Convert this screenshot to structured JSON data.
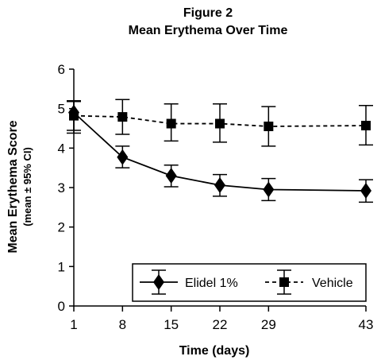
{
  "figure": {
    "title_line1": "Figure 2",
    "title_line2": "Mean Erythema Over Time"
  },
  "chart_data": {
    "type": "line",
    "xlabel": "Time (days)",
    "ylabel": "Mean Erythema Score",
    "ylabel_sub": "(mean ± 95% CI)",
    "x": [
      1,
      8,
      15,
      22,
      29,
      43
    ],
    "x_tick_labels": [
      "1",
      "8",
      "15",
      "22",
      "29",
      "43"
    ],
    "y_ticks": [
      0,
      1,
      2,
      3,
      4,
      5,
      6
    ],
    "xlim": [
      1,
      43
    ],
    "ylim": [
      0,
      6
    ],
    "grid": false,
    "legend_position": "bottom-right",
    "series": [
      {
        "name": "Elidel 1%",
        "marker": "diamond",
        "line_style": "solid",
        "values": [
          4.9,
          3.77,
          3.3,
          3.06,
          2.95,
          2.92
        ],
        "ci_low": [
          4.38,
          3.5,
          3.02,
          2.78,
          2.67,
          2.63
        ],
        "ci_high": [
          5.2,
          4.05,
          3.57,
          3.33,
          3.23,
          3.2
        ]
      },
      {
        "name": "Vehicle",
        "marker": "square",
        "line_style": "dashed",
        "values": [
          4.82,
          4.79,
          4.62,
          4.62,
          4.55,
          4.57
        ],
        "ci_low": [
          4.45,
          4.35,
          4.18,
          4.15,
          4.05,
          4.08
        ],
        "ci_high": [
          5.18,
          5.23,
          5.12,
          5.12,
          5.05,
          5.08
        ]
      }
    ]
  }
}
